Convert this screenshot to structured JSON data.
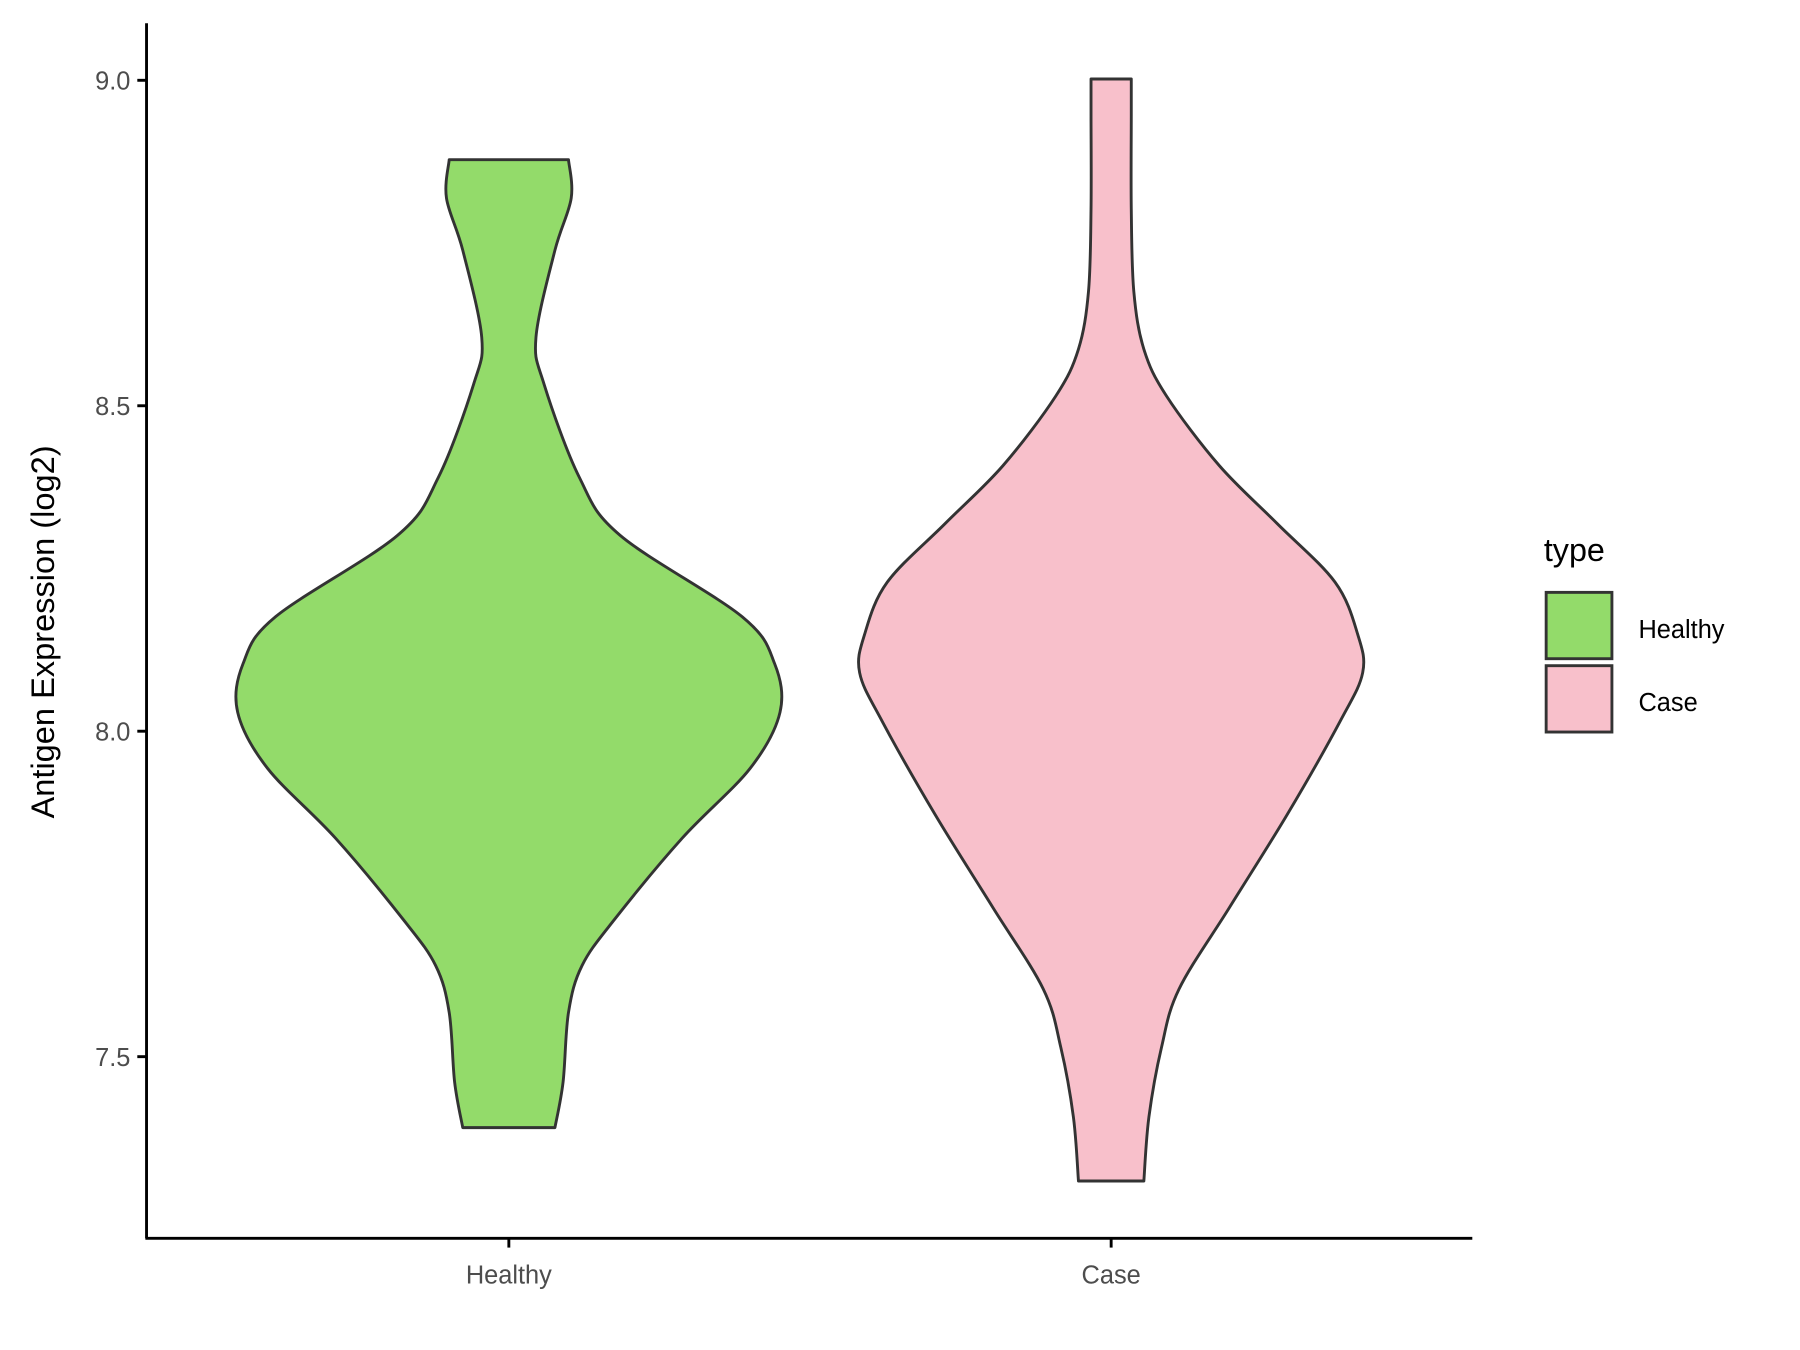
{
  "chart_data": {
    "type": "violin",
    "title": "",
    "xlabel": "",
    "ylabel": "Antigen Expression (log2)",
    "ylim": [
      7.22,
      9.09
    ],
    "yticks": [
      7.5,
      8.0,
      8.5,
      9.0
    ],
    "ytick_labels": [
      "7.5",
      "8.0",
      "8.5",
      "9.0"
    ],
    "categories": [
      "Healthy",
      "Case"
    ],
    "grid": false,
    "legend": {
      "title": "type",
      "placement": "right",
      "entries": [
        "Healthy",
        "Case"
      ]
    },
    "series": [
      {
        "name": "Healthy",
        "color": "#93DB6A",
        "min": 7.39,
        "max": 8.88,
        "density_profile": [
          [
            8.878,
            0.22
          ],
          [
            8.819,
            0.23
          ],
          [
            8.739,
            0.17
          ],
          [
            8.605,
            0.1
          ],
          [
            8.533,
            0.13
          ],
          [
            8.39,
            0.26
          ],
          [
            8.301,
            0.41
          ],
          [
            8.176,
            0.86
          ],
          [
            8.104,
            0.98
          ],
          [
            8.029,
            1.0
          ],
          [
            7.943,
            0.89
          ],
          [
            7.836,
            0.64
          ],
          [
            7.711,
            0.39
          ],
          [
            7.64,
            0.27
          ],
          [
            7.568,
            0.22
          ],
          [
            7.461,
            0.2
          ],
          [
            7.391,
            0.17
          ]
        ]
      },
      {
        "name": "Case",
        "color": "#F8C0CB",
        "min": 7.31,
        "max": 9.0,
        "density_profile": [
          [
            9.002,
            0.08
          ],
          [
            8.945,
            0.08
          ],
          [
            8.802,
            0.08
          ],
          [
            8.676,
            0.09
          ],
          [
            8.587,
            0.13
          ],
          [
            8.515,
            0.22
          ],
          [
            8.408,
            0.43
          ],
          [
            8.319,
            0.66
          ],
          [
            8.229,
            0.89
          ],
          [
            8.149,
            0.98
          ],
          [
            8.09,
            1.0
          ],
          [
            8.015,
            0.91
          ],
          [
            7.872,
            0.7
          ],
          [
            7.729,
            0.47
          ],
          [
            7.604,
            0.27
          ],
          [
            7.514,
            0.2
          ],
          [
            7.407,
            0.15
          ],
          [
            7.309,
            0.13
          ]
        ]
      }
    ],
    "outline_color": "#333333"
  }
}
